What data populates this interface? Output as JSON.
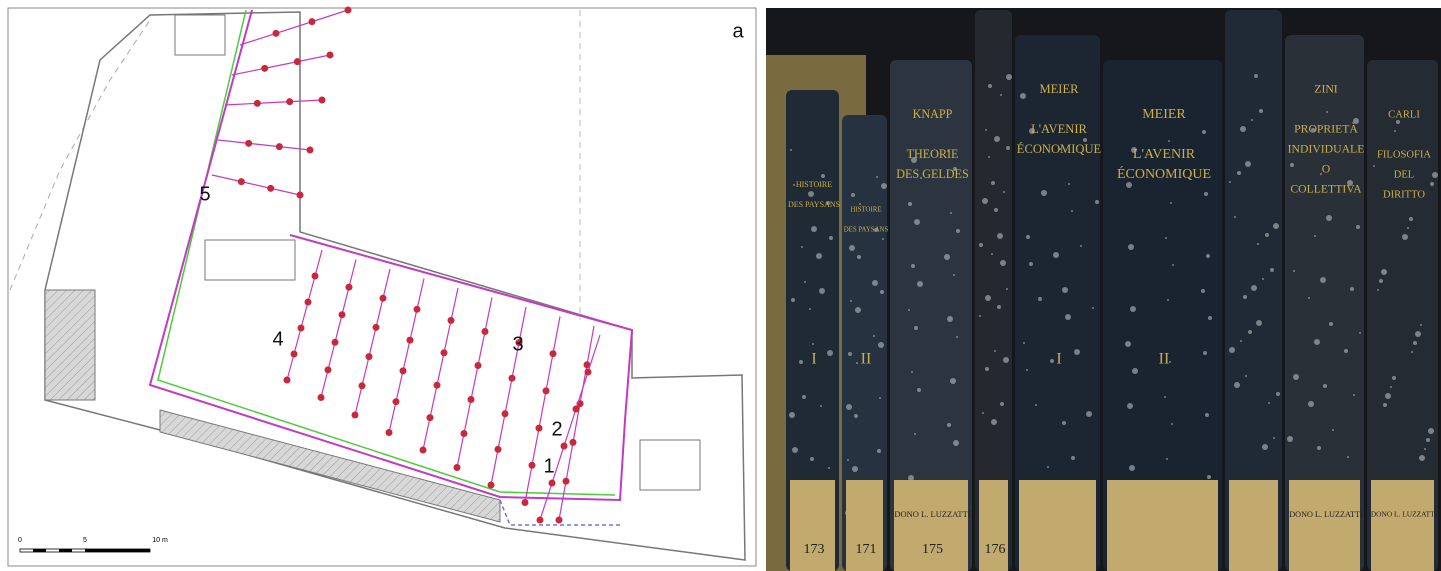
{
  "panel_a": {
    "label": "a",
    "markers": [
      "1",
      "2",
      "3",
      "4",
      "5"
    ],
    "scale": [
      "0",
      "5",
      "10 m"
    ]
  },
  "panel_b": {
    "spines": [
      {
        "title_lines": [
          "HISTOIRE",
          "DES PAYSANS"
        ],
        "volume": "I",
        "mark": "173"
      },
      {
        "title_lines": [
          "HISTOIRE",
          "DES PAYSANS"
        ],
        "volume": "II",
        "mark": "171"
      },
      {
        "author": "KNAPP",
        "title_lines": [
          "THEORIE",
          "DES GELDES"
        ],
        "mark": "175",
        "dono": "DONO L. LUZZATTI"
      },
      {
        "mark": "176"
      },
      {
        "author": "MEIER",
        "title_lines": [
          "L'AVENIR",
          "ÉCONOMIQUE"
        ],
        "volume": "I"
      },
      {
        "author": "MEIER",
        "title_lines": [
          "L'AVENIR",
          "ÉCONOMIQUE"
        ],
        "volume": "II"
      },
      {},
      {
        "author": "ZINI",
        "title_lines": [
          "PROPRIETÀ",
          "INDIVIDUALE",
          "O",
          "COLLETTIVA"
        ],
        "dono": "DONO L. LUZZATTI"
      },
      {
        "author": "CARLI",
        "title_lines": [
          "FILOSOFIA",
          "DEL",
          "DIRITTO"
        ],
        "dono": "DONO L. LUZZATTI"
      }
    ]
  }
}
